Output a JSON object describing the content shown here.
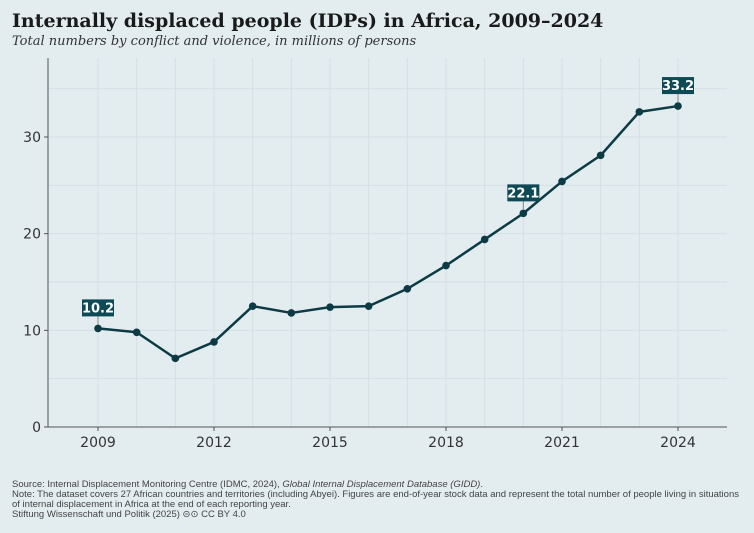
{
  "chart_data": {
    "type": "line",
    "title": "Internally displaced people (IDPs) in Africa, 2009–2024",
    "subtitle": "Total numbers by conflict and violence, in millions of persons",
    "x": [
      2009,
      2010,
      2011,
      2012,
      2013,
      2014,
      2015,
      2016,
      2017,
      2018,
      2019,
      2020,
      2021,
      2022,
      2023,
      2024
    ],
    "values": [
      10.2,
      9.8,
      7.1,
      8.8,
      12.5,
      11.8,
      12.4,
      12.5,
      14.3,
      16.7,
      19.4,
      22.1,
      25.4,
      28.1,
      32.6,
      33.2
    ],
    "xticks": [
      2009,
      2012,
      2015,
      2018,
      2021,
      2024
    ],
    "yticks": [
      0,
      10,
      20,
      30
    ],
    "xlim": [
      2008,
      2025.3
    ],
    "ylim": [
      0,
      38
    ],
    "grid": true,
    "annotations": [
      {
        "x": 2009,
        "label": "10.2"
      },
      {
        "x": 2020,
        "label": "22.1"
      },
      {
        "x": 2024,
        "label": "33.2"
      }
    ],
    "line_color": "#0d3b45",
    "label_bg": "#0d4a55"
  },
  "footer": {
    "source_prefix": "Source: Internal Displacement Monitoring Centre (IDMC, 2024), ",
    "source_title": "Global Internal Displacement Database (GIDD)",
    "source_suffix": ".",
    "note": "Note: The dataset covers 27 African countries and territories (including Abyei). Figures are end-of-year stock data and represent the total number of people living in situations of internal displacement in Africa at the end of each reporting year.",
    "credit": "Stiftung Wissenschaft und Politik (2025)  ⊝⊙ CC BY 4.0"
  }
}
